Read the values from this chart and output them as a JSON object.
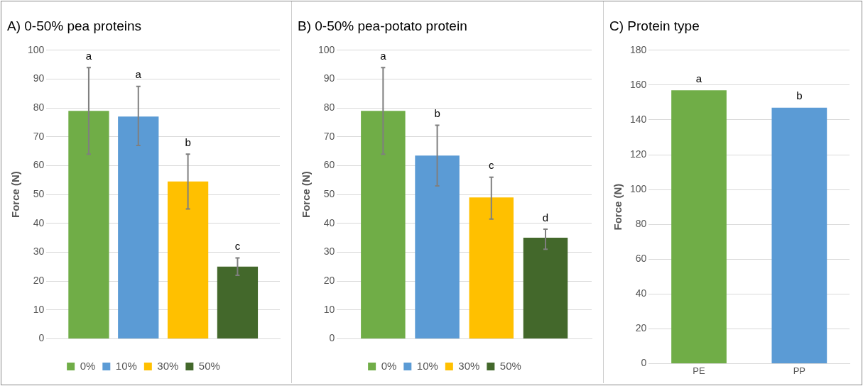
{
  "chart_data": [
    {
      "type": "bar",
      "title": "A) 0-50% pea proteins",
      "ylabel": "Force (N)",
      "categories": [
        null
      ],
      "series": [
        {
          "name": "0%",
          "color": "#70ad47",
          "values": [
            79
          ],
          "errors": [
            [
              64,
              94
            ]
          ]
        },
        {
          "name": "10%",
          "color": "#5b9bd5",
          "values": [
            77
          ],
          "errors": [
            [
              67,
              87.5
            ]
          ]
        },
        {
          "name": "30%",
          "color": "#ffc000",
          "values": [
            54.5
          ],
          "errors": [
            [
              45,
              64
            ]
          ]
        },
        {
          "name": "50%",
          "color": "#43682b",
          "values": [
            25
          ],
          "errors": [
            [
              22,
              28
            ]
          ]
        }
      ],
      "ylim": [
        0,
        100
      ],
      "yticks": [
        0,
        10,
        20,
        30,
        40,
        50,
        60,
        70,
        80,
        90,
        100
      ],
      "grid": "y",
      "legend": "bottom",
      "annotations": [
        "a",
        "a",
        "b",
        "c"
      ]
    },
    {
      "type": "bar",
      "title": "B) 0-50% pea-potato protein",
      "ylabel": "Force (N)",
      "categories": [
        null
      ],
      "series": [
        {
          "name": "0%",
          "color": "#70ad47",
          "values": [
            79
          ],
          "errors": [
            [
              64,
              94
            ]
          ]
        },
        {
          "name": "10%",
          "color": "#5b9bd5",
          "values": [
            63.5
          ],
          "errors": [
            [
              53,
              74
            ]
          ]
        },
        {
          "name": "30%",
          "color": "#ffc000",
          "values": [
            49
          ],
          "errors": [
            [
              41.5,
              56
            ]
          ]
        },
        {
          "name": "50%",
          "color": "#43682b",
          "values": [
            35
          ],
          "errors": [
            [
              31,
              38
            ]
          ]
        }
      ],
      "ylim": [
        0,
        100
      ],
      "yticks": [
        0,
        10,
        20,
        30,
        40,
        50,
        60,
        70,
        80,
        90,
        100
      ],
      "grid": "y",
      "legend": "bottom",
      "annotations": [
        "a",
        "b",
        "c",
        "d"
      ]
    },
    {
      "type": "bar",
      "title": "C) Protein type",
      "ylabel": "Force (N)",
      "categories": [
        "PE",
        "PP"
      ],
      "values": [
        157,
        147
      ],
      "colors": [
        "#70ad47",
        "#5b9bd5"
      ],
      "ylim": [
        0,
        180
      ],
      "yticks": [
        0,
        20,
        40,
        60,
        80,
        100,
        120,
        140,
        160,
        180
      ],
      "grid": "y",
      "legend": false,
      "annotations": [
        "a",
        "b"
      ]
    }
  ]
}
